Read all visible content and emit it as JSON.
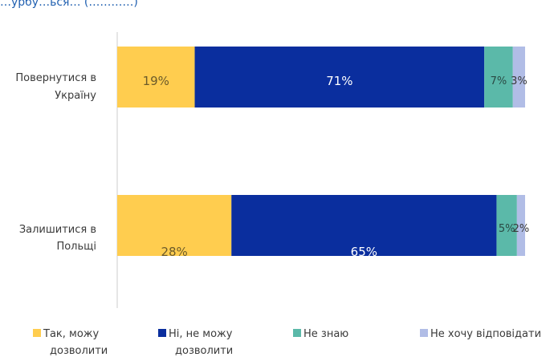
{
  "chart_data": {
    "type": "bar",
    "orientation": "horizontal",
    "stacked": true,
    "title": "",
    "title_visible": "…урбу…ься… (…………)",
    "xlabel": "",
    "ylabel": "",
    "xlim": [
      0,
      100
    ],
    "unit": "%",
    "grid": false,
    "legend_position": "bottom",
    "categories": [
      [
        "Повернутися в",
        "Україну"
      ],
      [
        "Залишитися в",
        "Польщі"
      ]
    ],
    "series": [
      {
        "name": [
          "Так, можу",
          "дозволити"
        ],
        "values": [
          19,
          28
        ],
        "labels": [
          "19%",
          "28%"
        ],
        "color": "#FFCD4F",
        "label_color": "#6b5a2a"
      },
      {
        "name": [
          "Ні, не можу",
          "дозволити"
        ],
        "values": [
          71,
          65
        ],
        "labels": [
          "71%",
          "65%"
        ],
        "color": "#0A2E9E",
        "label_color": "#ffffff"
      },
      {
        "name": [
          "Не знаю"
        ],
        "values": [
          7,
          5
        ],
        "labels": [
          "7%",
          "5%"
        ],
        "color": "#5BB9A9",
        "label_color": "#2a4a44"
      },
      {
        "name": [
          "Не хочу відповідати"
        ],
        "values": [
          3,
          2
        ],
        "labels": [
          "3%",
          "2%"
        ],
        "color": "#B1BDE6",
        "label_color": "#3a3a3a"
      }
    ]
  }
}
